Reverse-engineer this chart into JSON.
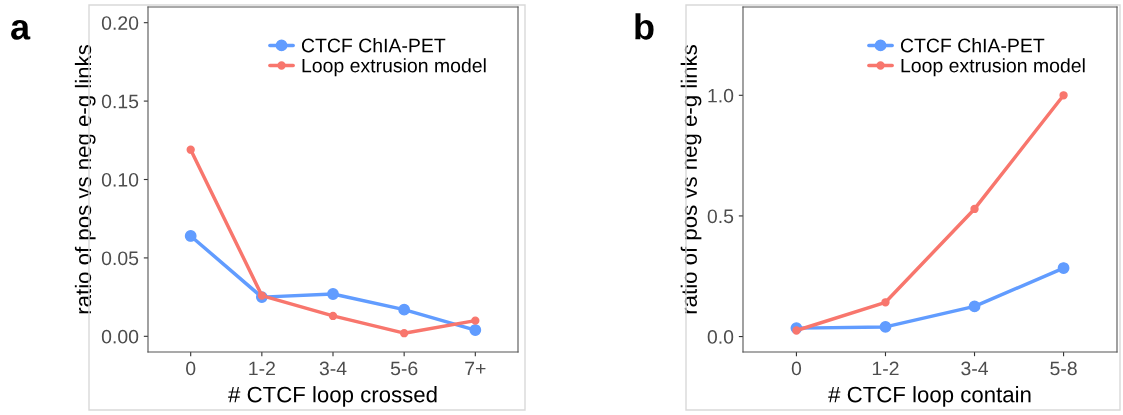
{
  "chart_data": [
    {
      "type": "line",
      "annotations": [
        "a"
      ],
      "xlabel": "# CTCF loop crossed",
      "ylabel": "ratio of pos vs neg e-g links",
      "categories": [
        "0",
        "1-2",
        "3-4",
        "5-6",
        "7+"
      ],
      "ylim": [
        -0.01,
        0.21
      ],
      "yticks": [
        {
          "value": 0,
          "label": "0.00"
        },
        {
          "value": 0.05,
          "label": "0.05"
        },
        {
          "value": 0.1,
          "label": "0.10"
        },
        {
          "value": 0.15,
          "label": "0.15"
        },
        {
          "value": 0.2,
          "label": "0.20"
        }
      ],
      "marker": "circle",
      "line_style": "solid",
      "grid": false,
      "legend": "top right",
      "series": [
        {
          "name": "CTCF ChIA-PET",
          "color": "#619cff",
          "values": [
            0.064,
            0.025,
            0.027,
            0.017,
            0.004
          ]
        },
        {
          "name": "Loop extrusion model",
          "color": "#f8766d",
          "values": [
            0.119,
            0.026,
            0.013,
            0.002,
            0.01
          ]
        }
      ]
    },
    {
      "type": "line",
      "annotations": [
        "b"
      ],
      "xlabel": "# CTCF loop contain",
      "ylabel": "ratio of pos vs neg e-g links",
      "categories": [
        "0",
        "1-2",
        "3-4",
        "5-8"
      ],
      "ylim": [
        -0.064,
        1.366
      ],
      "yticks": [
        {
          "value": 0,
          "label": "0.0"
        },
        {
          "value": 0.5,
          "label": "0.5"
        },
        {
          "value": 1.0,
          "label": "1.0"
        }
      ],
      "marker": "circle",
      "line_style": "solid",
      "grid": false,
      "legend": "top right",
      "series": [
        {
          "name": "CTCF ChIA-PET",
          "color": "#619cff",
          "values": [
            0.035,
            0.04,
            0.125,
            0.284
          ]
        },
        {
          "name": "Loop extrusion model",
          "color": "#f8766d",
          "values": [
            0.025,
            0.142,
            0.529,
            1.0
          ]
        }
      ]
    }
  ]
}
